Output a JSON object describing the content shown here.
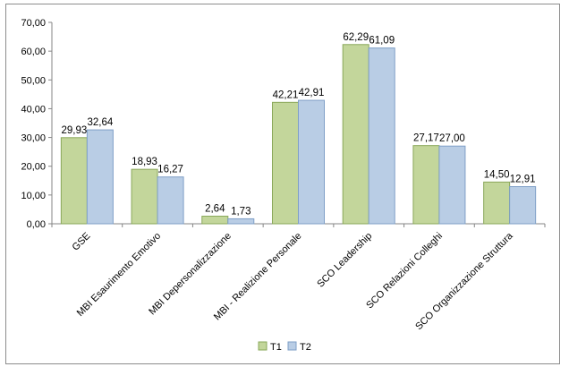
{
  "chart_data": {
    "type": "bar",
    "title": "",
    "xlabel": "",
    "ylabel": "",
    "ylim": [
      0,
      70
    ],
    "yticks": [
      0,
      10,
      20,
      30,
      40,
      50,
      60,
      70
    ],
    "ytick_labels": [
      "0,00",
      "10,00",
      "20,00",
      "30,00",
      "40,00",
      "50,00",
      "60,00",
      "70,00"
    ],
    "categories": [
      "GSE",
      "MBI Esaurimento Emotivo",
      "MBI Depersonalizzazione",
      "MBI - Realizione Personale",
      "SCO Leadership",
      "SCO Relazioni Colleghi",
      "SCO Organizzazione Struttura"
    ],
    "series": [
      {
        "name": "T1",
        "color": "#c3d69b",
        "edge": "#8aa85a",
        "values": [
          29.93,
          18.93,
          2.64,
          42.21,
          62.29,
          27.17,
          14.5
        ],
        "labels": [
          "29,93",
          "18,93",
          "2,64",
          "42,21",
          "62,29",
          "27,17",
          "14,50"
        ]
      },
      {
        "name": "T2",
        "color": "#b9cde5",
        "edge": "#7f9fc7",
        "values": [
          32.64,
          16.27,
          1.73,
          42.91,
          61.09,
          27.0,
          12.91
        ],
        "labels": [
          "32,64",
          "16,27",
          "1,73",
          "42,91",
          "61,09",
          "27,00",
          "12,91"
        ]
      }
    ],
    "grid": false,
    "legend": "bottom"
  }
}
